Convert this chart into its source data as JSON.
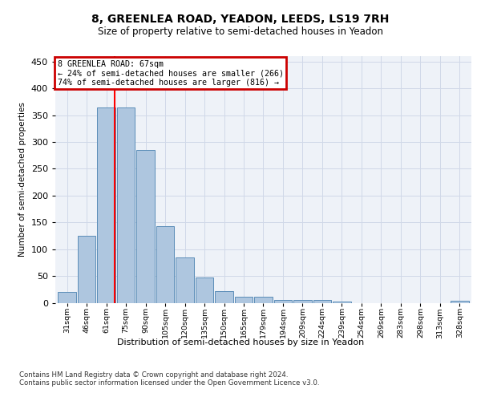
{
  "title": "8, GREENLEA ROAD, YEADON, LEEDS, LS19 7RH",
  "subtitle": "Size of property relative to semi-detached houses in Yeadon",
  "xlabel": "Distribution of semi-detached houses by size in Yeadon",
  "ylabel": "Number of semi-detached properties",
  "categories": [
    "31sqm",
    "46sqm",
    "61sqm",
    "75sqm",
    "90sqm",
    "105sqm",
    "120sqm",
    "135sqm",
    "150sqm",
    "165sqm",
    "179sqm",
    "194sqm",
    "209sqm",
    "224sqm",
    "239sqm",
    "254sqm",
    "269sqm",
    "283sqm",
    "298sqm",
    "313sqm",
    "328sqm"
  ],
  "values": [
    20,
    125,
    365,
    365,
    285,
    143,
    85,
    47,
    22,
    11,
    11,
    5,
    5,
    5,
    2,
    0,
    0,
    0,
    0,
    0,
    4
  ],
  "bar_color": "#aec6df",
  "bar_edge_color": "#5b8db8",
  "property_line_label": "8 GREENLEA ROAD: 67sqm",
  "pct_smaller": 24,
  "pct_smaller_count": 266,
  "pct_larger": 74,
  "pct_larger_count": 816,
  "annotation_box_edgecolor": "#cc0000",
  "grid_color": "#d0d8e8",
  "background_color": "#eef2f8",
  "footer_text": "Contains HM Land Registry data © Crown copyright and database right 2024.\nContains public sector information licensed under the Open Government Licence v3.0.",
  "ylim": [
    0,
    460
  ],
  "sqm_vals": [
    31,
    46,
    61,
    75,
    90,
    105,
    120,
    135,
    150,
    165,
    179,
    194,
    209,
    224,
    239,
    254,
    269,
    283,
    298,
    313,
    328
  ],
  "prop_sqm": 67,
  "prop_sqm_index_from": 2,
  "prop_sqm_index_to": 3
}
